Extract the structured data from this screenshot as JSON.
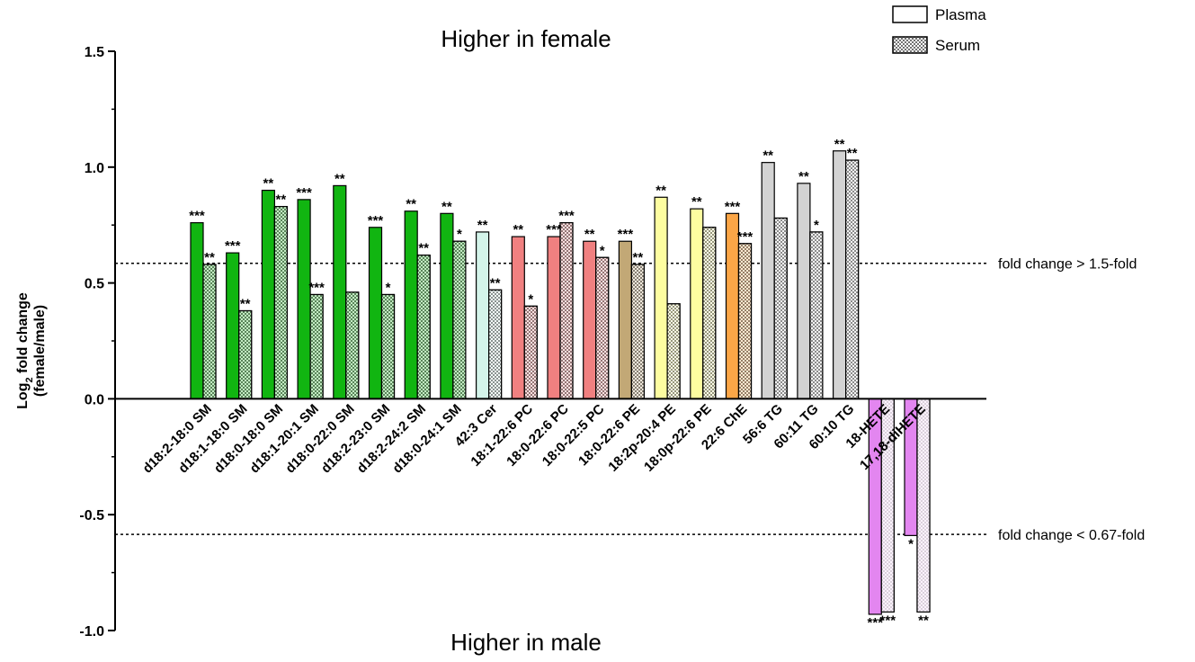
{
  "chart_data": {
    "type": "bar",
    "ylabel": "Log",
    "ylabel_sub": "2",
    "ylabel_rest": " fold change",
    "ylabel_line2": "(female/male)",
    "ylim": [
      -1.0,
      1.5
    ],
    "yticks": [
      1.5,
      1.0,
      0.5,
      0.0,
      -0.5,
      -1.0
    ],
    "ytick_labels": [
      "1.5",
      "1.0",
      "0.5",
      "0.0",
      "-0.5",
      "-1.0"
    ],
    "top_annotation": "Higher in female",
    "bottom_annotation": "Higher in male",
    "reference_lines": [
      {
        "y": 0.585,
        "label": "fold change > 1.5-fold"
      },
      {
        "y": -0.585,
        "label": "fold change < 0.67-fold"
      }
    ],
    "legend": [
      {
        "name": "Plasma",
        "pattern": "open"
      },
      {
        "name": "Serum",
        "pattern": "checkered"
      }
    ],
    "categories": [
      "d18:2-18:0 SM",
      "d18:1-18:0 SM",
      "d18:0-18:0 SM",
      "d18:1-20:1 SM",
      "d18:0-22:0 SM",
      "d18:2-23:0 SM",
      "d18:2-24:2 SM",
      "d18:0-24:1 SM",
      "42:3 Cer",
      "18:1-22:6 PC",
      "18:0-22:6 PC",
      "18:0-22:5 PC",
      "18:0-22:6 PE",
      "18:2p-20:4 PE",
      "18:0p-22:6 PE",
      "22:6 ChE",
      "56:6 TG",
      "60:11 TG",
      "60:10 TG",
      "18-HETE",
      "17,18-diHETE"
    ],
    "colors": [
      "#11b511",
      "#11b511",
      "#11b511",
      "#11b511",
      "#11b511",
      "#11b511",
      "#11b511",
      "#11b511",
      "#d4f4ea",
      "#f08080",
      "#f08080",
      "#f08080",
      "#c2a876",
      "#fdfda0",
      "#fdfda0",
      "#fba647",
      "#d3d3d3",
      "#d3d3d3",
      "#d3d3d3",
      "#e386f0",
      "#e386f0"
    ],
    "series": [
      {
        "name": "Plasma",
        "values": [
          0.76,
          0.63,
          0.9,
          0.86,
          0.92,
          0.74,
          0.81,
          0.8,
          0.72,
          0.7,
          0.7,
          0.68,
          0.68,
          0.87,
          0.82,
          0.8,
          1.02,
          0.93,
          1.07,
          -0.93,
          -0.59
        ],
        "significance": [
          "***",
          "***",
          "**",
          "***",
          "**",
          "***",
          "**",
          "**",
          "**",
          "**",
          "***",
          "**",
          "***",
          "**",
          "**",
          "***",
          "**",
          "**",
          "**",
          "***",
          "*"
        ]
      },
      {
        "name": "Serum",
        "values": [
          0.58,
          0.38,
          0.83,
          0.45,
          0.46,
          0.45,
          0.62,
          0.68,
          0.47,
          0.4,
          0.76,
          0.61,
          0.58,
          0.41,
          0.74,
          0.67,
          0.78,
          0.72,
          1.03,
          -0.92,
          -0.92
        ],
        "significance": [
          "**",
          "**",
          "**",
          "***",
          "",
          "*",
          "**",
          "*",
          "**",
          "*",
          "***",
          "*",
          "**",
          "",
          "",
          "***",
          "",
          "*",
          "**",
          "***",
          "**"
        ]
      }
    ]
  }
}
